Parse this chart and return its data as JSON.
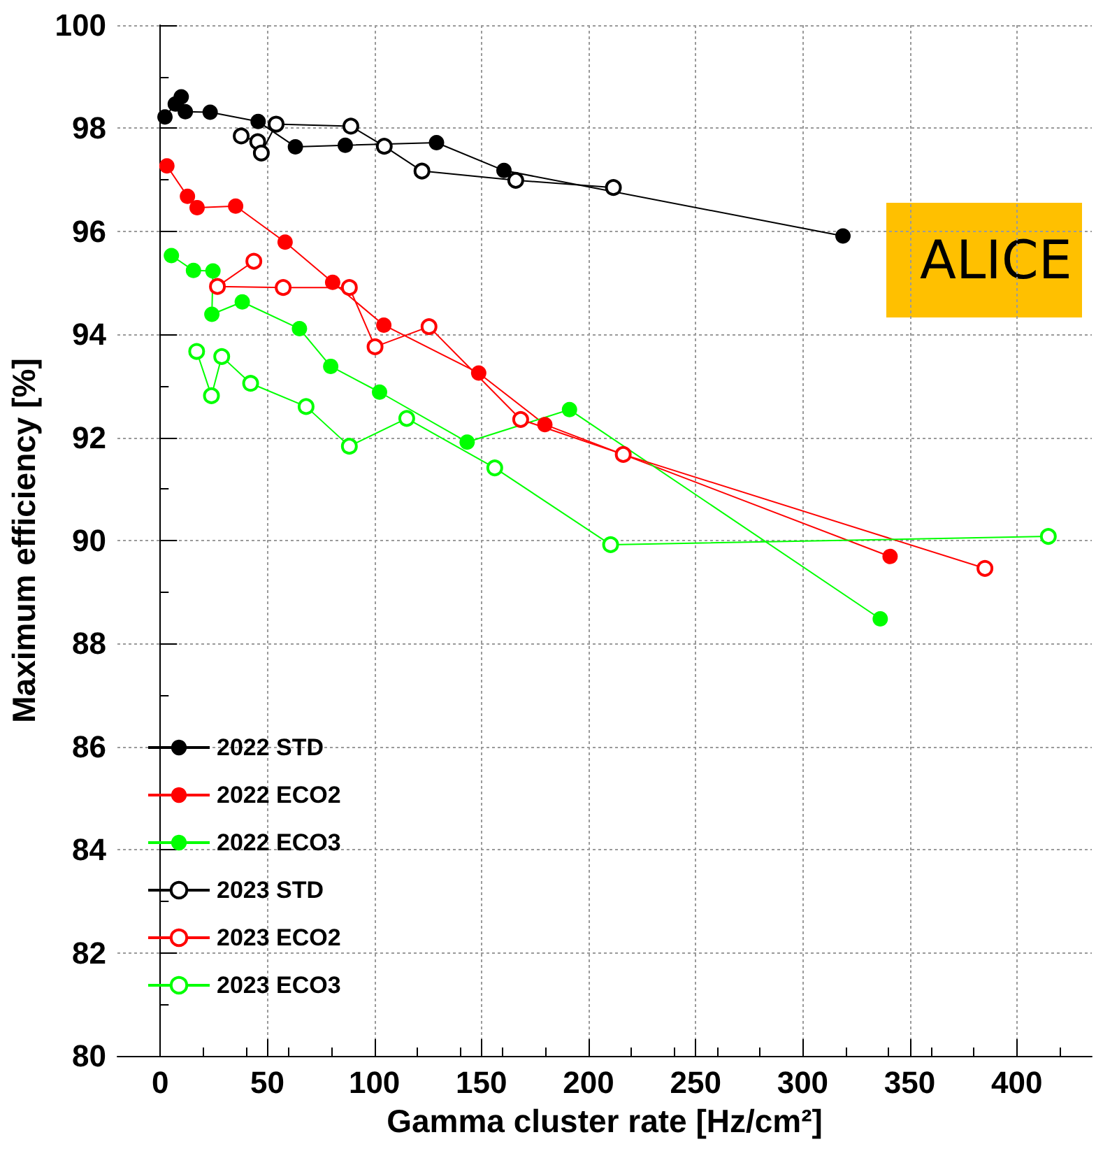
{
  "chart_data": {
    "type": "line",
    "xlabel": "Gamma cluster rate [Hz/cm²]",
    "ylabel": "Maximum efficiency [%]",
    "xlim": [
      -20,
      435
    ],
    "xticks": [
      0,
      50,
      100,
      150,
      200,
      250,
      300,
      350,
      400
    ],
    "ylim": [
      80,
      100
    ],
    "yticks": [
      80,
      82,
      84,
      86,
      88,
      90,
      92,
      94,
      96,
      98,
      100
    ],
    "grid": true,
    "legend": "bottom left",
    "annotations": [
      "ALICE"
    ],
    "series": [
      {
        "name": "2022 STD",
        "color": "#000000",
        "marker": "circle",
        "x": [
          2.2,
          7.0,
          9.8,
          11.7,
          23.3,
          45.7,
          63.1,
          86.4,
          129,
          160.5,
          318.8
        ],
        "values": [
          98.22,
          98.47,
          98.61,
          98.32,
          98.31,
          98.13,
          97.64,
          97.67,
          97.72,
          97.18,
          95.91
        ]
      },
      {
        "name": "2022 ECO2",
        "color": "#ff0000",
        "marker": "circle",
        "x": [
          3.1,
          12.7,
          17.2,
          35.2,
          58.3,
          80.5,
          104.4,
          148.7,
          179.6,
          340.8
        ],
        "values": [
          97.27,
          96.68,
          96.46,
          96.49,
          95.79,
          95.01,
          94.18,
          93.25,
          92.25,
          89.69
        ]
      },
      {
        "name": "2022 ECO3",
        "color": "#00ff00",
        "marker": "circle",
        "x": [
          5.2,
          15.5,
          24.6,
          24.1,
          38.3,
          65,
          79.6,
          102.4,
          143.3,
          191.1,
          336.2
        ],
        "values": [
          95.53,
          95.24,
          95.23,
          94.39,
          94.63,
          94.11,
          93.38,
          92.88,
          91.91,
          92.54,
          88.48
        ]
      },
      {
        "name": "2023 STD",
        "color": "#000000",
        "marker": "emptyCircle",
        "x": [
          37.8,
          45.5,
          47.2,
          54.1,
          89,
          104.6,
          122.2,
          166,
          211.6
        ],
        "values": [
          97.85,
          97.74,
          97.52,
          98.08,
          98.04,
          97.65,
          97.17,
          96.99,
          96.85
        ]
      },
      {
        "name": "2023 ECO2",
        "color": "#ff0000",
        "marker": "emptyCircle",
        "x": [
          43.7,
          26.7,
          57.4,
          88.3,
          100.3,
          125.5,
          168.3,
          216.2,
          385.1
        ],
        "values": [
          95.42,
          94.93,
          94.91,
          94.91,
          93.76,
          94.15,
          92.35,
          91.67,
          89.46
        ]
      },
      {
        "name": "2023 ECO3",
        "color": "#00ff00",
        "marker": "emptyCircle",
        "x": [
          17,
          23.9,
          28.7,
          42.2,
          68.1,
          88.3,
          115.1,
          156.2,
          210.3,
          414.7
        ],
        "values": [
          93.67,
          92.81,
          93.57,
          93.05,
          92.6,
          91.83,
          92.37,
          91.41,
          89.92,
          90.08
        ]
      }
    ]
  }
}
